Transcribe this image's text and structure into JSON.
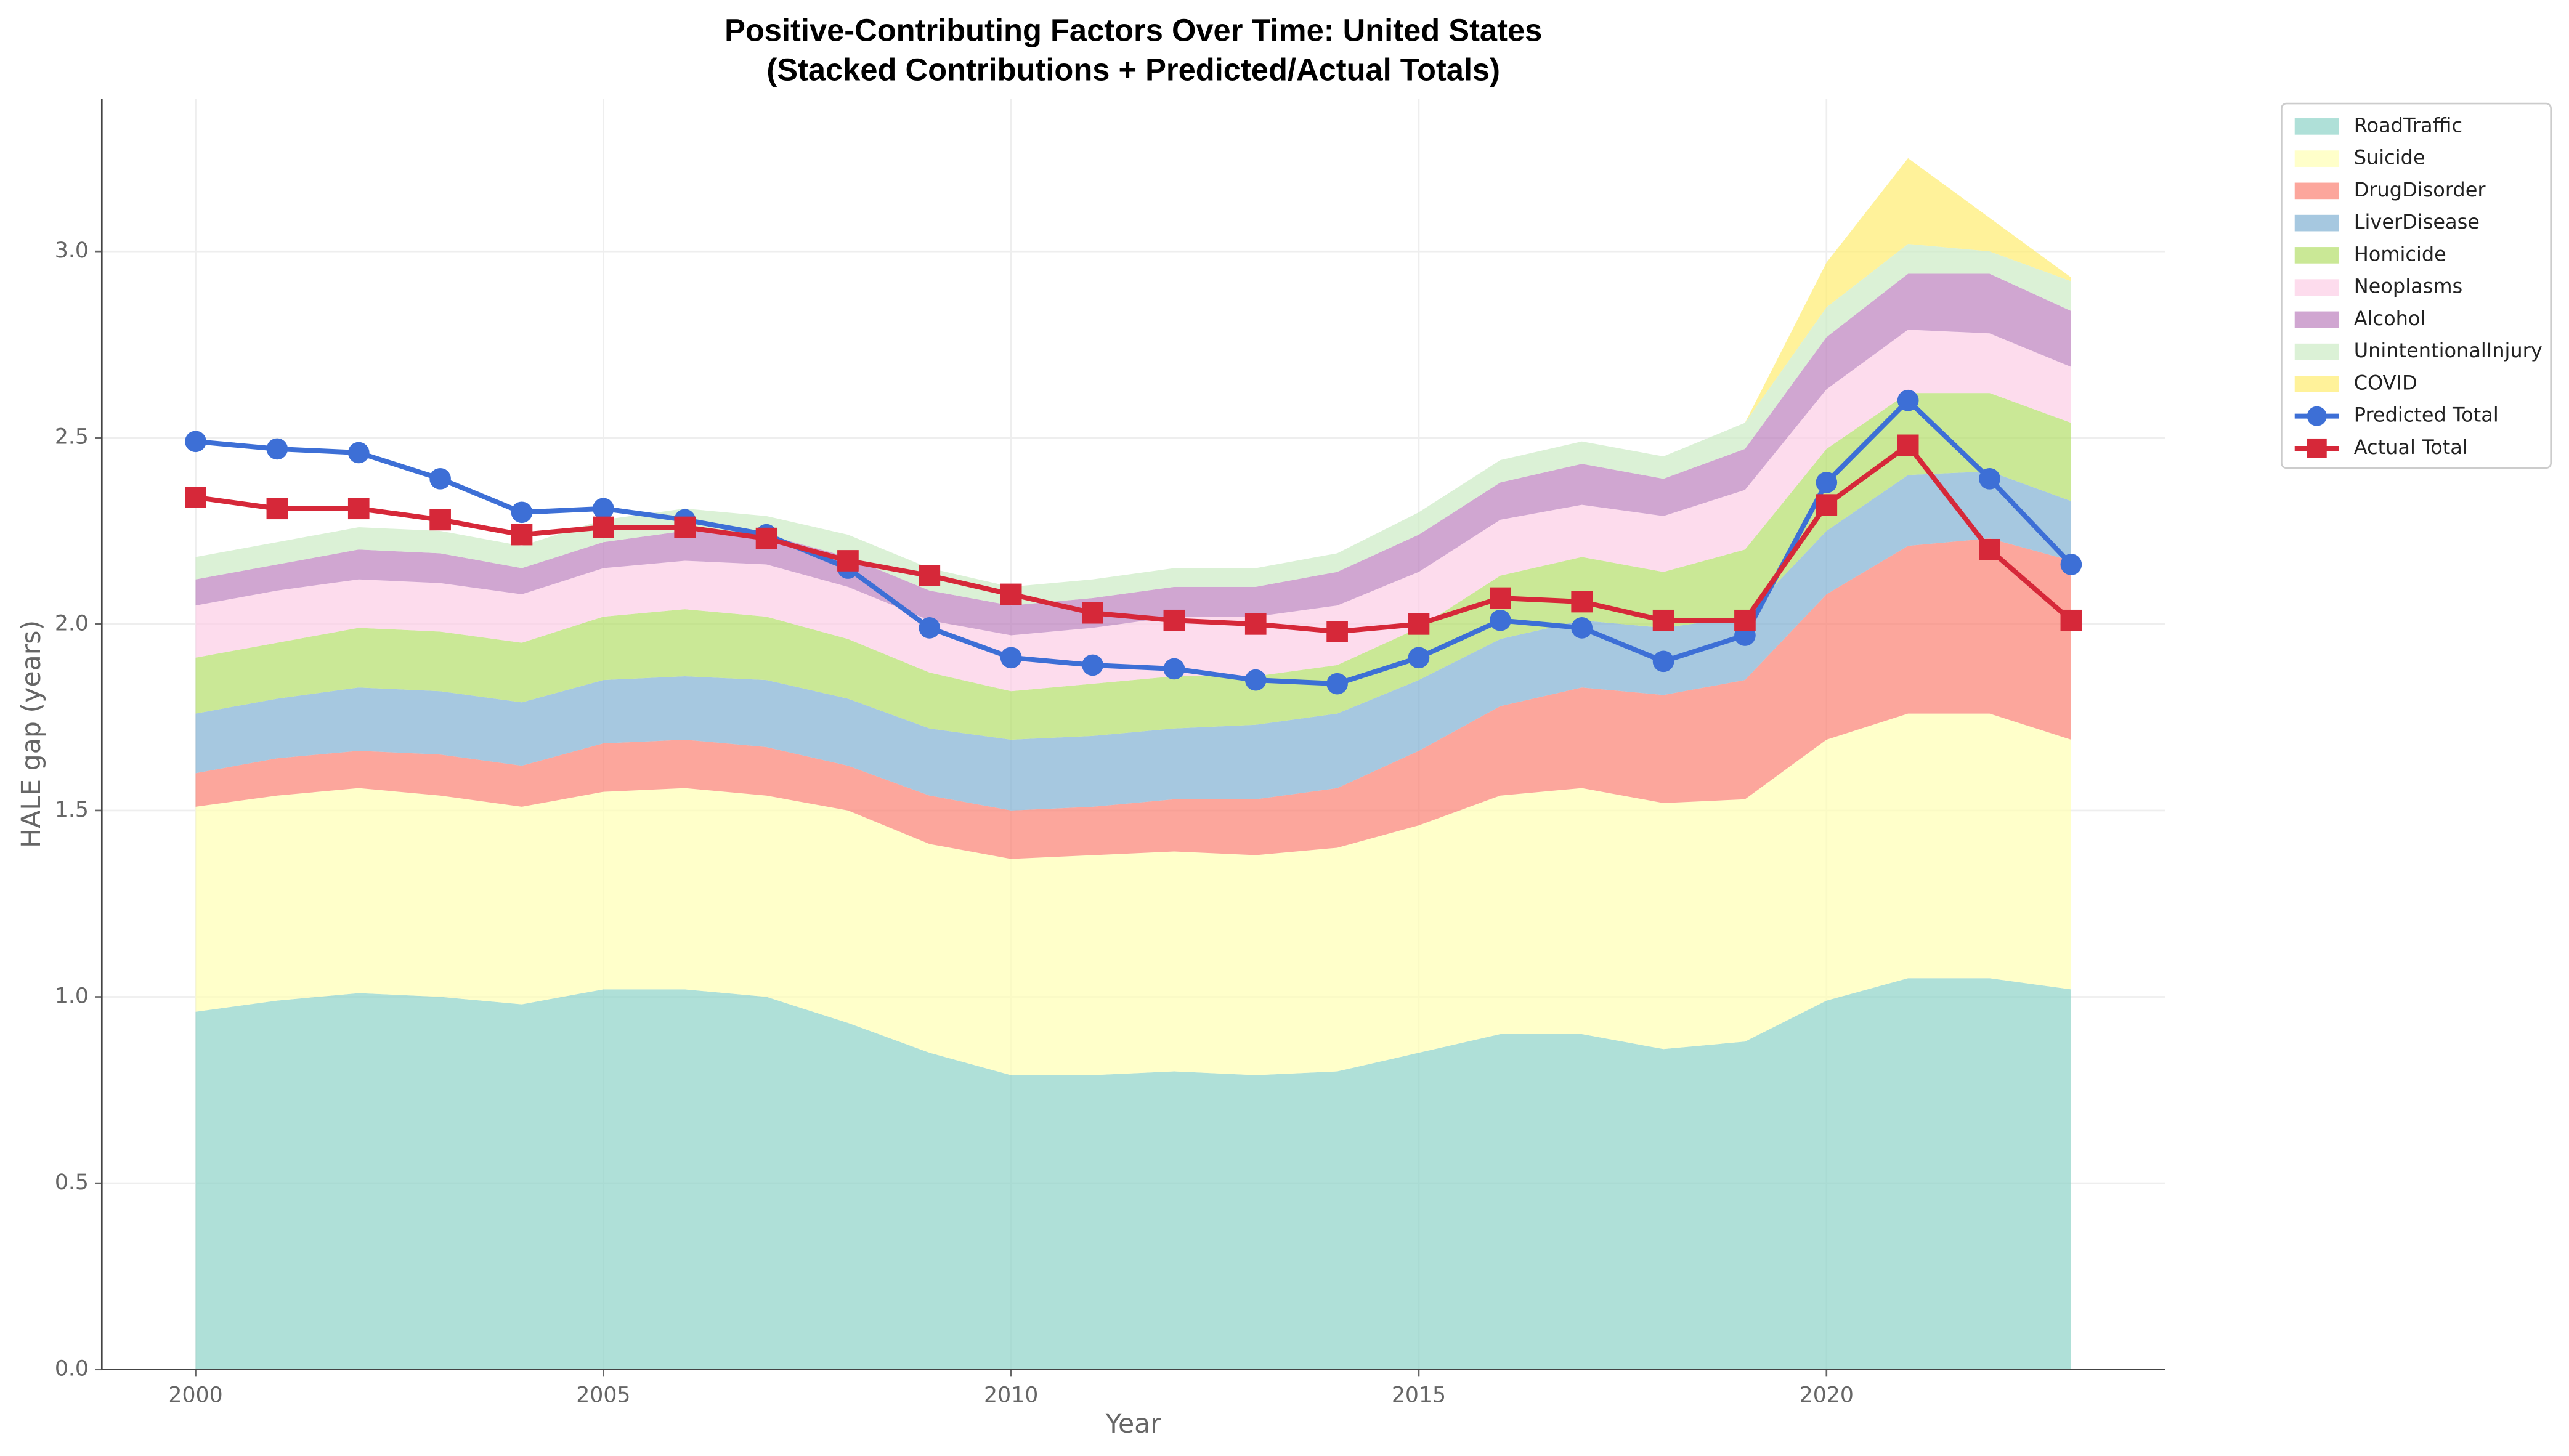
{
  "chart_data": {
    "type": "stacked_area",
    "title": "Positive-Contributing Factors Over Time: United States",
    "subtitle": "(Stacked Contributions + Predicted/Actual Totals)",
    "x_label": "Year",
    "y_label": "HALE gap (years)",
    "x": [
      2000,
      2001,
      2002,
      2003,
      2004,
      2005,
      2006,
      2007,
      2008,
      2009,
      2010,
      2011,
      2012,
      2013,
      2014,
      2015,
      2016,
      2017,
      2018,
      2019,
      2020,
      2021,
      2022,
      2023
    ],
    "series": [
      {
        "name": "RoadTraffic",
        "color": "#8dd3c7",
        "values": [
          0.96,
          0.99,
          1.01,
          1.0,
          0.98,
          1.02,
          1.02,
          1.0,
          0.93,
          0.85,
          0.79,
          0.79,
          0.8,
          0.79,
          0.8,
          0.85,
          0.9,
          0.9,
          0.86,
          0.88,
          0.99,
          1.05,
          1.05,
          1.02
        ]
      },
      {
        "name": "Suicide",
        "color": "#ffffb3",
        "values": [
          0.55,
          0.55,
          0.55,
          0.54,
          0.53,
          0.53,
          0.54,
          0.54,
          0.57,
          0.56,
          0.58,
          0.59,
          0.59,
          0.59,
          0.6,
          0.61,
          0.64,
          0.66,
          0.66,
          0.65,
          0.7,
          0.71,
          0.71,
          0.67
        ]
      },
      {
        "name": "DrugDisorder",
        "color": "#fb8072",
        "values": [
          0.09,
          0.1,
          0.1,
          0.11,
          0.11,
          0.13,
          0.13,
          0.13,
          0.12,
          0.13,
          0.13,
          0.13,
          0.14,
          0.15,
          0.16,
          0.2,
          0.24,
          0.27,
          0.29,
          0.32,
          0.39,
          0.45,
          0.47,
          0.48
        ]
      },
      {
        "name": "LiverDisease",
        "color": "#80b1d3",
        "values": [
          0.16,
          0.16,
          0.17,
          0.17,
          0.17,
          0.17,
          0.17,
          0.18,
          0.18,
          0.18,
          0.19,
          0.19,
          0.19,
          0.2,
          0.2,
          0.19,
          0.18,
          0.18,
          0.18,
          0.17,
          0.17,
          0.19,
          0.18,
          0.16
        ]
      },
      {
        "name": "Homicide",
        "color": "#b3de69",
        "values": [
          0.15,
          0.15,
          0.16,
          0.16,
          0.16,
          0.17,
          0.18,
          0.17,
          0.16,
          0.15,
          0.13,
          0.14,
          0.14,
          0.13,
          0.13,
          0.14,
          0.17,
          0.17,
          0.15,
          0.18,
          0.22,
          0.22,
          0.21,
          0.21
        ]
      },
      {
        "name": "Neoplasms",
        "color": "#fccde5",
        "values": [
          0.14,
          0.14,
          0.13,
          0.13,
          0.13,
          0.13,
          0.13,
          0.14,
          0.14,
          0.14,
          0.15,
          0.15,
          0.16,
          0.16,
          0.16,
          0.15,
          0.15,
          0.14,
          0.15,
          0.16,
          0.16,
          0.17,
          0.16,
          0.15
        ]
      },
      {
        "name": "Alcohol",
        "color": "#bc80bd",
        "values": [
          0.07,
          0.07,
          0.08,
          0.08,
          0.07,
          0.07,
          0.08,
          0.08,
          0.08,
          0.08,
          0.08,
          0.08,
          0.08,
          0.08,
          0.09,
          0.1,
          0.1,
          0.11,
          0.1,
          0.11,
          0.14,
          0.15,
          0.16,
          0.15
        ]
      },
      {
        "name": "UnintentionalInjury",
        "color": "#ccebc5",
        "values": [
          0.06,
          0.06,
          0.06,
          0.06,
          0.06,
          0.06,
          0.06,
          0.05,
          0.06,
          0.06,
          0.05,
          0.05,
          0.05,
          0.05,
          0.05,
          0.06,
          0.06,
          0.06,
          0.06,
          0.07,
          0.08,
          0.08,
          0.06,
          0.08
        ]
      },
      {
        "name": "COVID",
        "color": "#ffed6f",
        "values": [
          0,
          0,
          0,
          0,
          0,
          0,
          0,
          0,
          0,
          0,
          0,
          0,
          0,
          0,
          0,
          0,
          0,
          0,
          0,
          0,
          0.12,
          0.23,
          0.09,
          0.01
        ]
      }
    ],
    "lines": [
      {
        "name": "Predicted Total",
        "color": "#3d6fd6",
        "marker": "circle",
        "values": [
          2.49,
          2.47,
          2.46,
          2.39,
          2.3,
          2.31,
          2.28,
          2.24,
          2.15,
          1.99,
          1.91,
          1.89,
          1.88,
          1.85,
          1.84,
          1.91,
          2.01,
          1.99,
          1.9,
          1.97,
          2.38,
          2.6,
          2.39,
          2.16
        ]
      },
      {
        "name": "Actual Total",
        "color": "#d62839",
        "marker": "square",
        "values": [
          2.34,
          2.31,
          2.31,
          2.28,
          2.24,
          2.26,
          2.26,
          2.23,
          2.17,
          2.13,
          2.08,
          2.03,
          2.01,
          2.0,
          1.98,
          2.0,
          2.07,
          2.06,
          2.01,
          2.01,
          2.32,
          2.48,
          2.2,
          2.01
        ]
      }
    ],
    "xlim": [
      1998.85,
      2024.15
    ],
    "ylim": [
      0,
      3.41
    ],
    "xticks": [
      2000,
      2005,
      2010,
      2015,
      2020
    ],
    "yticks": [
      {
        "value": 0,
        "label": "0.0"
      },
      {
        "value": 0.5,
        "label": "0.5"
      },
      {
        "value": 1,
        "label": "1.0"
      },
      {
        "value": 1.5,
        "label": "1.5"
      },
      {
        "value": 2,
        "label": "2.0"
      },
      {
        "value": 2.5,
        "label": "2.5"
      },
      {
        "value": 3,
        "label": "3.0"
      }
    ],
    "area_opacity": 0.7,
    "grid": true,
    "legend": "outside upper right"
  }
}
